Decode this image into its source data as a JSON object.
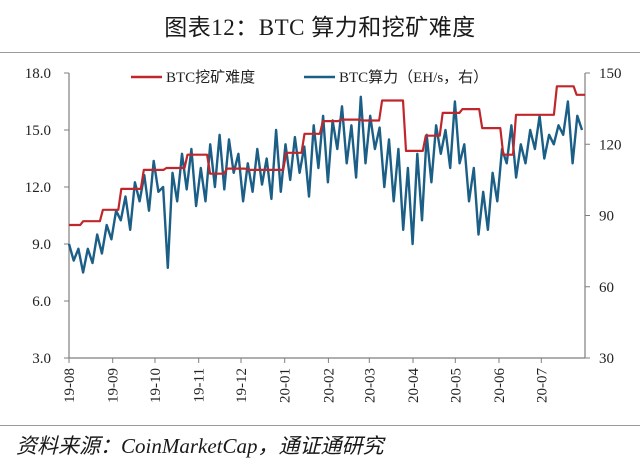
{
  "title": "图表12：BTC 算力和挖矿难度",
  "source": "资料来源：CoinMarketCap，通证通研究",
  "colors": {
    "difficulty": "#c0272d",
    "hashrate": "#1b5e86",
    "axis": "#7f7f7f"
  },
  "legend": [
    {
      "label": "BTC挖矿难度",
      "color": "#c0272d"
    },
    {
      "label": "BTC算力（EH/s，右）",
      "color": "#1b5e86"
    }
  ],
  "chart_data": {
    "type": "line",
    "title": "图表12：BTC 算力和挖矿难度",
    "xlabel": "",
    "ylabel_left": "",
    "ylabel_right": "",
    "ylim_left": [
      3.0,
      18.0
    ],
    "ylim_right": [
      30,
      150
    ],
    "yticks_left": [
      "18.0",
      "15.0",
      "12.0",
      "9.0",
      "6.0",
      "3.0"
    ],
    "yticks_right": [
      "150",
      "120",
      "90",
      "60",
      "30"
    ],
    "x_tick_labels": [
      "19-08",
      "19-09",
      "19-10",
      "19-11",
      "19-12",
      "20-01",
      "20-02",
      "20-03",
      "20-04",
      "20-05",
      "20-06",
      "20-07"
    ],
    "grid": false,
    "legend_position": "top",
    "series": [
      {
        "name": "BTC挖矿难度",
        "axis": "left",
        "style": "step",
        "points": [
          {
            "x": "19-08-01",
            "y": 10.0
          },
          {
            "x": "19-08-10",
            "y": 10.2
          },
          {
            "x": "19-08-24",
            "y": 10.8
          },
          {
            "x": "19-09-06",
            "y": 11.9
          },
          {
            "x": "19-09-22",
            "y": 12.9
          },
          {
            "x": "19-10-08",
            "y": 13.0
          },
          {
            "x": "19-10-23",
            "y": 13.7
          },
          {
            "x": "19-11-08",
            "y": 12.7
          },
          {
            "x": "19-11-20",
            "y": 12.97
          },
          {
            "x": "19-12-05",
            "y": 12.9
          },
          {
            "x": "19-12-18",
            "y": 12.9
          },
          {
            "x": "20-01-01",
            "y": 13.8
          },
          {
            "x": "20-01-14",
            "y": 14.8
          },
          {
            "x": "20-01-27",
            "y": 15.47
          },
          {
            "x": "20-02-09",
            "y": 15.55
          },
          {
            "x": "20-02-24",
            "y": 15.5
          },
          {
            "x": "20-03-09",
            "y": 16.55
          },
          {
            "x": "20-03-26",
            "y": 13.9
          },
          {
            "x": "20-04-09",
            "y": 14.7
          },
          {
            "x": "20-04-21",
            "y": 15.9
          },
          {
            "x": "20-05-05",
            "y": 16.1
          },
          {
            "x": "20-05-19",
            "y": 15.1
          },
          {
            "x": "20-06-03",
            "y": 13.7
          },
          {
            "x": "20-06-12",
            "y": 15.8
          },
          {
            "x": "20-06-26",
            "y": 15.8
          },
          {
            "x": "20-07-11",
            "y": 17.3
          },
          {
            "x": "20-07-25",
            "y": 16.85
          },
          {
            "x": "20-07-31",
            "y": 16.85
          }
        ]
      },
      {
        "name": "BTC算力（EH/s，右）",
        "axis": "right",
        "style": "line",
        "approx_weekly_values": [
          78,
          71,
          76,
          66,
          76,
          70,
          82,
          74,
          86,
          80,
          92,
          88,
          98,
          84,
          104,
          96,
          107,
          92,
          113,
          100,
          102,
          68,
          108,
          96,
          116,
          101,
          118,
          94,
          110,
          96,
          120,
          102,
          124,
          101,
          122,
          108,
          116,
          96,
          112,
          100,
          118,
          103,
          114,
          97,
          126,
          100,
          120,
          105,
          123,
          108,
          119,
          98,
          128,
          110,
          132,
          104,
          130,
          118,
          136,
          112,
          128,
          106,
          140,
          112,
          132,
          118,
          127,
          102,
          122,
          96,
          118,
          84,
          110,
          78,
          116,
          88,
          124,
          104,
          128,
          116,
          126,
          110,
          138,
          112,
          120,
          96,
          110,
          82,
          100,
          84,
          108,
          96,
          118,
          112,
          128,
          106,
          120,
          112,
          126,
          118,
          132,
          114,
          124,
          120,
          128,
          124,
          138,
          112,
          132,
          126
        ]
      }
    ]
  }
}
